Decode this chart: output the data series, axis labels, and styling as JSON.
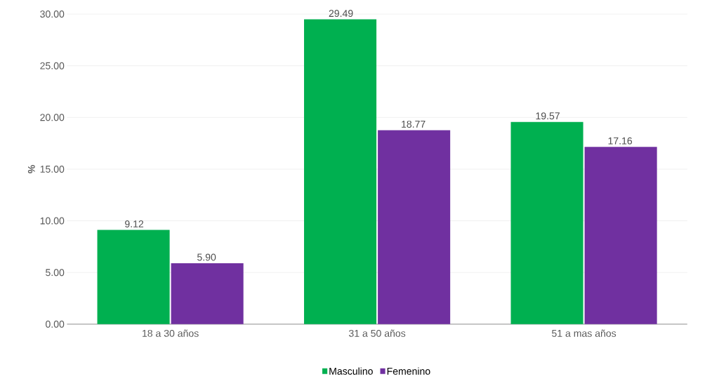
{
  "chart_data": {
    "type": "bar",
    "ylabel": "%",
    "categories": [
      "18 a 30 años",
      "31 a 50 años",
      "51 a mas años"
    ],
    "series": [
      {
        "name": "Masculino",
        "color": "#00b050",
        "values": [
          9.12,
          29.49,
          19.57
        ],
        "value_labels": [
          "9.12",
          "29.49",
          "19.57"
        ]
      },
      {
        "name": "Femenino",
        "color": "#7030a0",
        "values": [
          5.9,
          18.77,
          17.16
        ],
        "value_labels": [
          "5.90",
          "18.77",
          "17.16"
        ]
      }
    ],
    "ylim": [
      0,
      30
    ],
    "yticks": [
      {
        "value": 0,
        "label": "0.00"
      },
      {
        "value": 5,
        "label": "5.00"
      },
      {
        "value": 10,
        "label": "10.00"
      },
      {
        "value": 15,
        "label": "15.00"
      },
      {
        "value": 20,
        "label": "20.00"
      },
      {
        "value": 25,
        "label": "25.00"
      },
      {
        "value": 30,
        "label": "30.00"
      }
    ],
    "grid": "y",
    "legend": "bottom"
  }
}
